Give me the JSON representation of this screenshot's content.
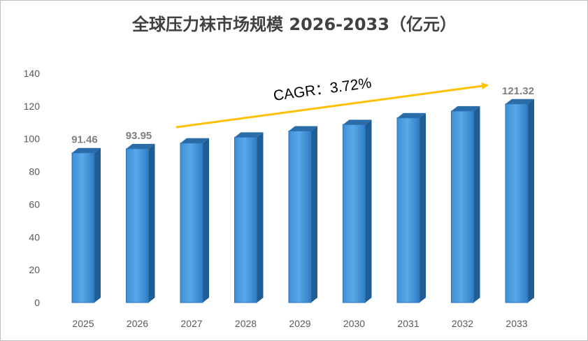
{
  "chart_data": {
    "type": "bar",
    "title": "全球压力袜市场规模 2026-2033（亿元）",
    "xlabel": "",
    "ylabel": "",
    "categories": [
      "2025",
      "2026",
      "2027",
      "2028",
      "2029",
      "2030",
      "2031",
      "2032",
      "2033"
    ],
    "values": [
      91.46,
      93.95,
      97.4,
      101.0,
      104.8,
      108.7,
      112.8,
      117.0,
      121.32
    ],
    "data_labels": [
      "91.46",
      "93.95",
      "",
      "",
      "",
      "",
      "",
      "",
      "121.32"
    ],
    "ylim": [
      0,
      140
    ],
    "yticks": [
      "0",
      "20",
      "40",
      "60",
      "80",
      "100",
      "120",
      "140"
    ],
    "grid": false,
    "style": "3d-columns",
    "bar_color": "#4a9de0",
    "annotation": {
      "text": "CAGR：3.72%",
      "arrow_color": "#ffc000"
    }
  }
}
